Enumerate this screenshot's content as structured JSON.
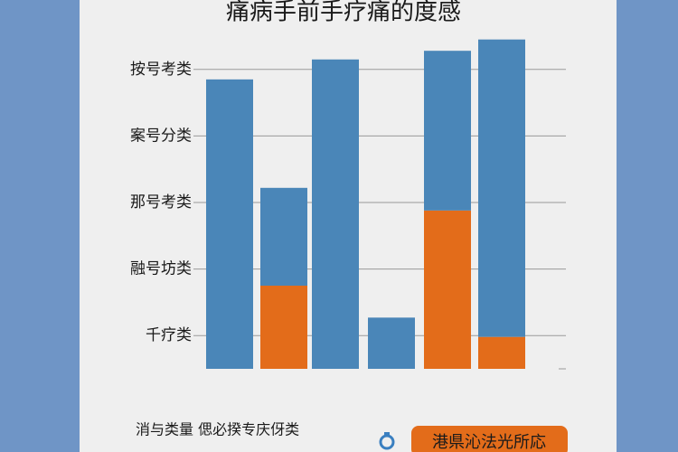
{
  "chart_data": {
    "type": "bar",
    "stacked": true,
    "title": "痛病手前手疗痛的度感",
    "categories": [
      null,
      null,
      null,
      null,
      null,
      null
    ],
    "series": [
      {
        "color": "#e36c1a",
        "values": [
          0,
          1.25,
          0,
          0,
          2.38,
          0.48
        ]
      },
      {
        "color": "#4a86b8",
        "values": [
          4.35,
          1.47,
          4.65,
          0.77,
          2.4,
          4.47
        ]
      }
    ],
    "ylim": [
      0,
      5
    ],
    "yticks": [
      {
        "value": 0.5,
        "label": "千疗类"
      },
      {
        "value": 1.5,
        "label": "融号坊类"
      },
      {
        "value": 2.5,
        "label": "那号考类"
      },
      {
        "value": 3.5,
        "label": "案号分类"
      },
      {
        "value": 4.5,
        "label": "按号考类"
      }
    ],
    "grid": true,
    "note": "消与类量 偲必揆专庆伢类",
    "button": "港県沁法光所応"
  }
}
